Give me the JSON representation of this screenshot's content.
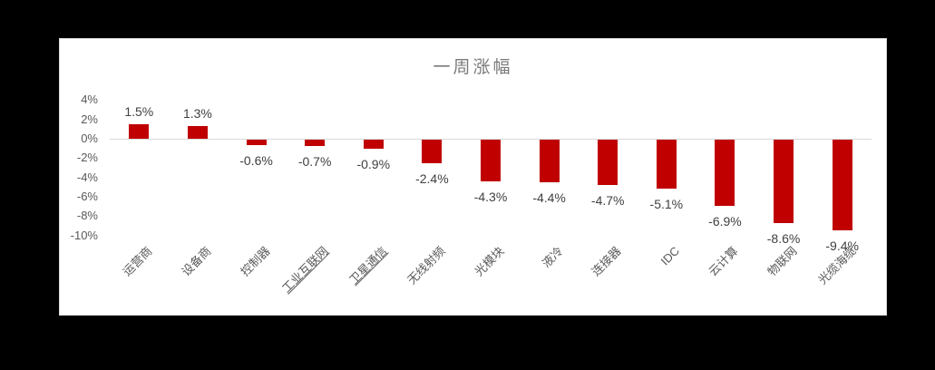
{
  "chart_data": {
    "type": "bar",
    "title": "一周涨幅",
    "categories": [
      "运营商",
      "设备商",
      "控制器",
      "工业互联网",
      "卫星通信",
      "无线射频",
      "光模块",
      "液冷",
      "连接器",
      "IDC",
      "云计算",
      "物联网",
      "光缆海缆"
    ],
    "values": [
      1.5,
      1.3,
      -0.6,
      -0.7,
      -0.9,
      -2.4,
      -4.3,
      -4.4,
      -4.7,
      -5.1,
      -6.9,
      -8.6,
      -9.4
    ],
    "data_labels": [
      "1.5%",
      "1.3%",
      "-0.6%",
      "-0.7%",
      "-0.9%",
      "-2.4%",
      "-4.3%",
      "-4.4%",
      "-4.7%",
      "-5.1%",
      "-6.9%",
      "-8.6%",
      "-9.4%"
    ],
    "underlined_categories": [
      "工业互联网",
      "卫星通信"
    ],
    "y_axis": {
      "tick_labels": [
        "4%",
        "2%",
        "0%",
        "-2%",
        "-4%",
        "-6%",
        "-8%",
        "-10%"
      ],
      "tick_values": [
        4,
        2,
        0,
        -2,
        -4,
        -6,
        -8,
        -10
      ]
    },
    "ylim": [
      -10,
      4
    ],
    "grid": "zero-line-only",
    "legend": "none",
    "xlabel": "",
    "ylabel": "",
    "colors": {
      "bar": "#c00000",
      "title": "#7a7a7a",
      "axis_labels": "#595959",
      "data_labels": "#404040",
      "zero_line": "#d9d9d9",
      "panel_background": "#ffffff",
      "canvas_background": "#000000"
    }
  }
}
